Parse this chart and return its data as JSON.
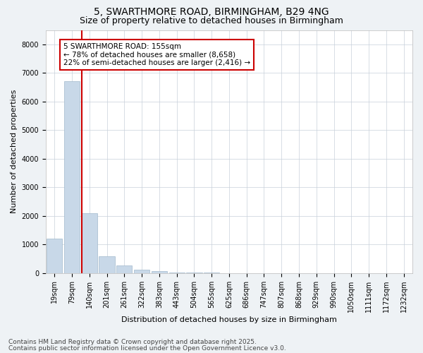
{
  "title_line1": "5, SWARTHMORE ROAD, BIRMINGHAM, B29 4NG",
  "title_line2": "Size of property relative to detached houses in Birmingham",
  "xlabel": "Distribution of detached houses by size in Birmingham",
  "ylabel": "Number of detached properties",
  "categories": [
    "19sqm",
    "79sqm",
    "140sqm",
    "201sqm",
    "261sqm",
    "322sqm",
    "383sqm",
    "443sqm",
    "504sqm",
    "565sqm",
    "625sqm",
    "686sqm",
    "747sqm",
    "807sqm",
    "868sqm",
    "929sqm",
    "990sqm",
    "1050sqm",
    "1111sqm",
    "1172sqm",
    "1232sqm"
  ],
  "values": [
    1200,
    6700,
    2100,
    580,
    260,
    115,
    55,
    25,
    20,
    10,
    0,
    0,
    0,
    0,
    0,
    0,
    0,
    0,
    0,
    0,
    0
  ],
  "bar_color": "#c8d8e8",
  "bar_edge_color": "#a0b8cc",
  "vline_color": "#cc0000",
  "annotation_text": "5 SWARTHMORE ROAD: 155sqm\n← 78% of detached houses are smaller (8,658)\n22% of semi-detached houses are larger (2,416) →",
  "annotation_box_color": "#cc0000",
  "ylim": [
    0,
    8500
  ],
  "yticks": [
    0,
    1000,
    2000,
    3000,
    4000,
    5000,
    6000,
    7000,
    8000
  ],
  "footer_line1": "Contains HM Land Registry data © Crown copyright and database right 2025.",
  "footer_line2": "Contains public sector information licensed under the Open Government Licence v3.0.",
  "background_color": "#eef2f5",
  "plot_background_color": "#ffffff",
  "grid_color": "#c8d0da",
  "title_fontsize": 10,
  "subtitle_fontsize": 9,
  "axis_label_fontsize": 8,
  "tick_fontsize": 7,
  "footer_fontsize": 6.5
}
